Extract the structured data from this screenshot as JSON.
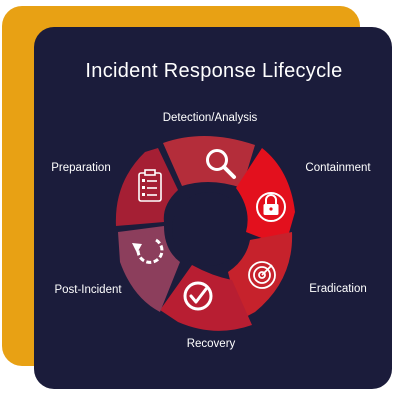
{
  "title": "Incident Response Lifecycle",
  "stages": [
    {
      "label": "Detection/Analysis",
      "icon": "magnifier-icon",
      "color": "#b42d3a"
    },
    {
      "label": "Containment",
      "icon": "lock-icon",
      "color": "#e3101d"
    },
    {
      "label": "Eradication",
      "icon": "radar-target-icon",
      "color": "#c6222c"
    },
    {
      "label": "Recovery",
      "icon": "check-circle-icon",
      "color": "#b81e32"
    },
    {
      "label": "Post-Incident",
      "icon": "refresh-arrow-icon",
      "color": "#8c3e5c"
    },
    {
      "label": "Preparation",
      "icon": "clipboard-checklist-icon",
      "color": "#a51f34"
    }
  ],
  "colors": {
    "accent_card": "#e8a114",
    "panel": "#1b1c3b"
  }
}
